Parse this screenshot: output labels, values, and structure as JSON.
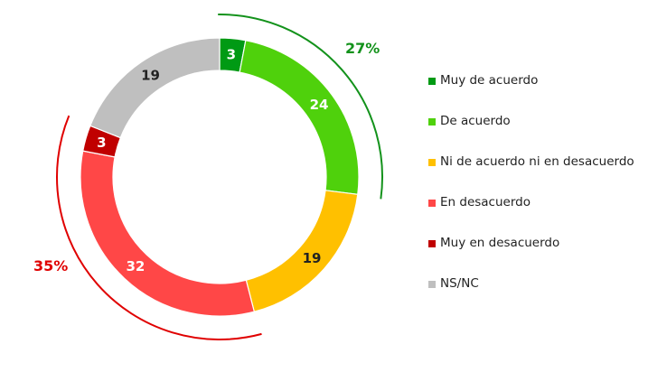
{
  "chart_data": {
    "type": "pie",
    "subtype": "donut",
    "categories": [
      "Muy de acuerdo",
      "De acuerdo",
      "Ni de acuerdo ni en desacuerdo",
      "En desacuerdo",
      "Muy en desacuerdo",
      "NS/NC"
    ],
    "values": [
      3,
      24,
      19,
      32,
      3,
      19
    ],
    "colors": [
      "#009a14",
      "#4fd10c",
      "#ffc000",
      "#ff4747",
      "#c00000",
      "#bfbfbf"
    ],
    "label_colors": [
      "#ffffff",
      "#ffffff",
      "#222222",
      "#ffffff",
      "#ffffff",
      "#222222"
    ],
    "legend_position": "right",
    "group_annotations": [
      {
        "label": "27%",
        "color": "#13921b",
        "from_index": 0,
        "to_index": 1
      },
      {
        "label": "35%",
        "color": "#e00000",
        "from_index": 3,
        "to_index": 4
      }
    ]
  }
}
